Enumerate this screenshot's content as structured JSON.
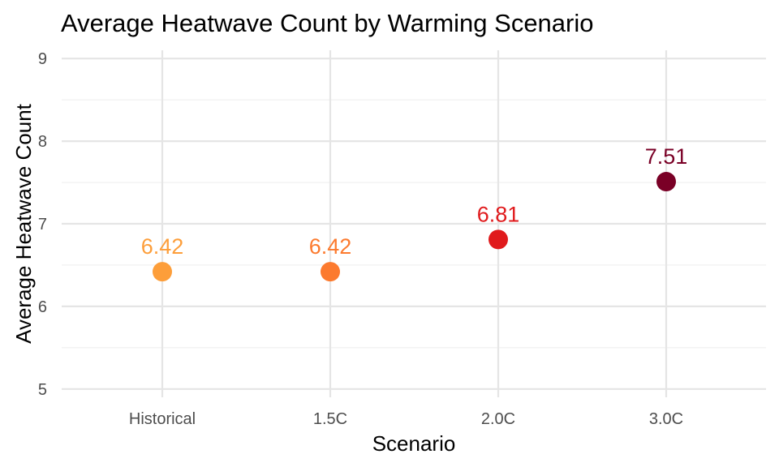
{
  "chart_data": {
    "type": "scatter",
    "title": "Average Heatwave Count by Warming Scenario",
    "xlabel": "Scenario",
    "ylabel": "Average Heatwave Count",
    "categories": [
      "Historical",
      "1.5C",
      "2.0C",
      "3.0C"
    ],
    "values": [
      6.42,
      6.42,
      6.81,
      7.51
    ],
    "data_labels": [
      "6.42",
      "6.42",
      "6.81",
      "7.51"
    ],
    "colors": [
      "#fd9e3a",
      "#fc7a2e",
      "#e01a1c",
      "#7a0026"
    ],
    "ylim": [
      4.9,
      9.1
    ],
    "yticks": [
      5,
      6,
      7,
      8,
      9
    ],
    "ytick_labels": [
      "5",
      "6",
      "7",
      "8",
      "9"
    ],
    "grid": true,
    "legend": "none"
  }
}
